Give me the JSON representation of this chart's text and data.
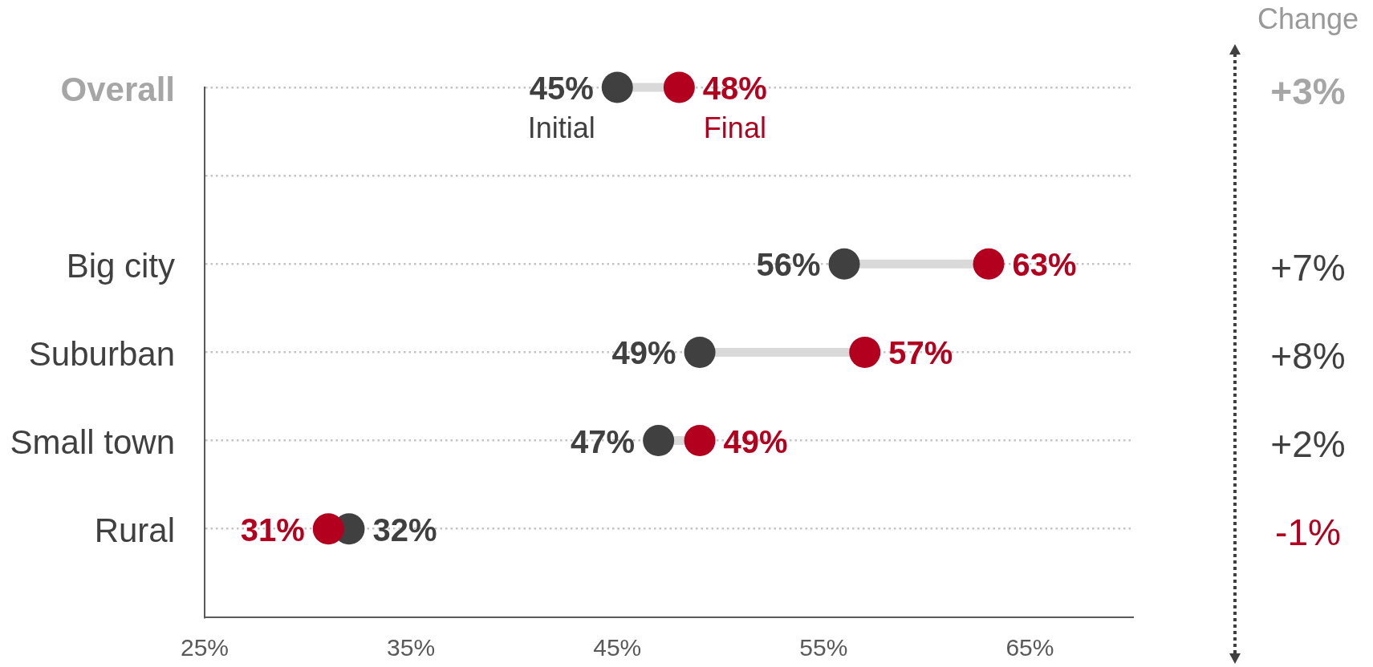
{
  "chart_data": {
    "type": "scatter",
    "orientation": "horizontal",
    "categories": [
      "Overall",
      null,
      "Big city",
      "Suburban",
      "Small town",
      "Rural"
    ],
    "series": [
      {
        "name": "Initial",
        "color": "#404040",
        "values": [
          45,
          null,
          56,
          49,
          47,
          32
        ],
        "value_labels": [
          "45%",
          null,
          "56%",
          "49%",
          "47%",
          "32%"
        ]
      },
      {
        "name": "Final",
        "color": "#b2001e",
        "values": [
          48,
          null,
          63,
          57,
          49,
          31
        ],
        "value_labels": [
          "48%",
          null,
          "63%",
          "57%",
          "49%",
          "31%"
        ]
      }
    ],
    "xlim": [
      25,
      70
    ],
    "xticks": [
      {
        "value": 25,
        "label": "25%"
      },
      {
        "value": 35,
        "label": "35%"
      },
      {
        "value": 45,
        "label": "45%"
      },
      {
        "value": 55,
        "label": "55%"
      },
      {
        "value": 65,
        "label": "65%"
      }
    ],
    "grid": "y",
    "marker": "circle",
    "annotations": [
      "Change",
      "+3%",
      "+7%",
      "+8%",
      "+2%",
      "-1%"
    ]
  }
}
